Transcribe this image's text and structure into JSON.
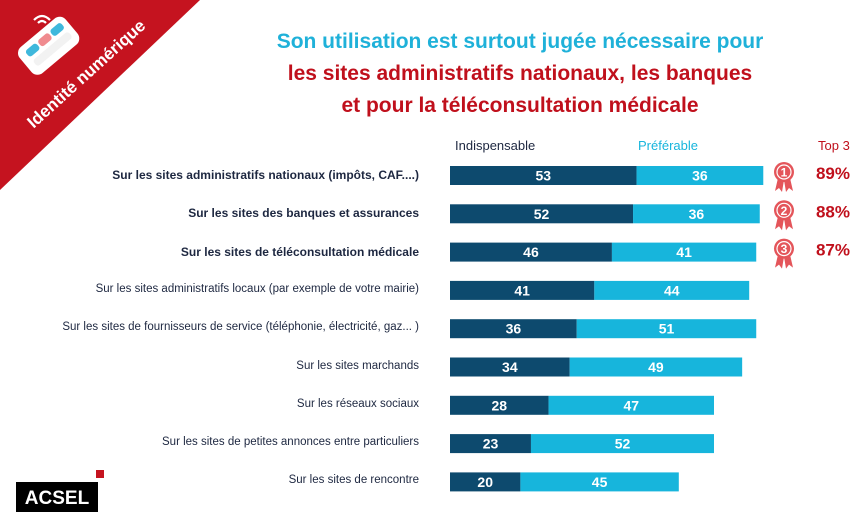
{
  "badge": {
    "text": "Identité numérique"
  },
  "title": {
    "line1": "Son utilisation est surtout jugée nécessaire pour",
    "line2": "les sites administratifs nationaux, les banques",
    "line3": "et pour la téléconsultation médicale"
  },
  "legend": {
    "series1": "Indispensable",
    "series2": "Préférable",
    "top3": "Top 3"
  },
  "logo": {
    "text": "ACSEL"
  },
  "colors": {
    "indispensable": "#0d4a6e",
    "preferable": "#17b5dc",
    "accent": "#c0101c",
    "medal": "#e4555a"
  },
  "chart_data": {
    "type": "bar",
    "orientation": "horizontal",
    "stacked": true,
    "categories": [
      "Sur les sites administratifs nationaux (impôts, CAF....)",
      "Sur les sites des banques et assurances",
      "Sur les sites de téléconsultation médicale",
      "Sur les sites administratifs locaux (par exemple de votre mairie)",
      "Sur les sites de fournisseurs de service (téléphonie, électricité, gaz... )",
      "Sur les sites marchands",
      "Sur les réseaux sociaux",
      "Sur les sites de petites annonces entre particuliers",
      "Sur les sites de rencontre"
    ],
    "series": [
      {
        "name": "Indispensable",
        "values": [
          53,
          52,
          46,
          41,
          36,
          34,
          28,
          23,
          20
        ]
      },
      {
        "name": "Préférable",
        "values": [
          36,
          36,
          41,
          44,
          51,
          49,
          47,
          52,
          45
        ]
      }
    ],
    "top3": [
      {
        "rank": "1",
        "value": "89%"
      },
      {
        "rank": "2",
        "value": "88%"
      },
      {
        "rank": "3",
        "value": "87%"
      }
    ]
  }
}
